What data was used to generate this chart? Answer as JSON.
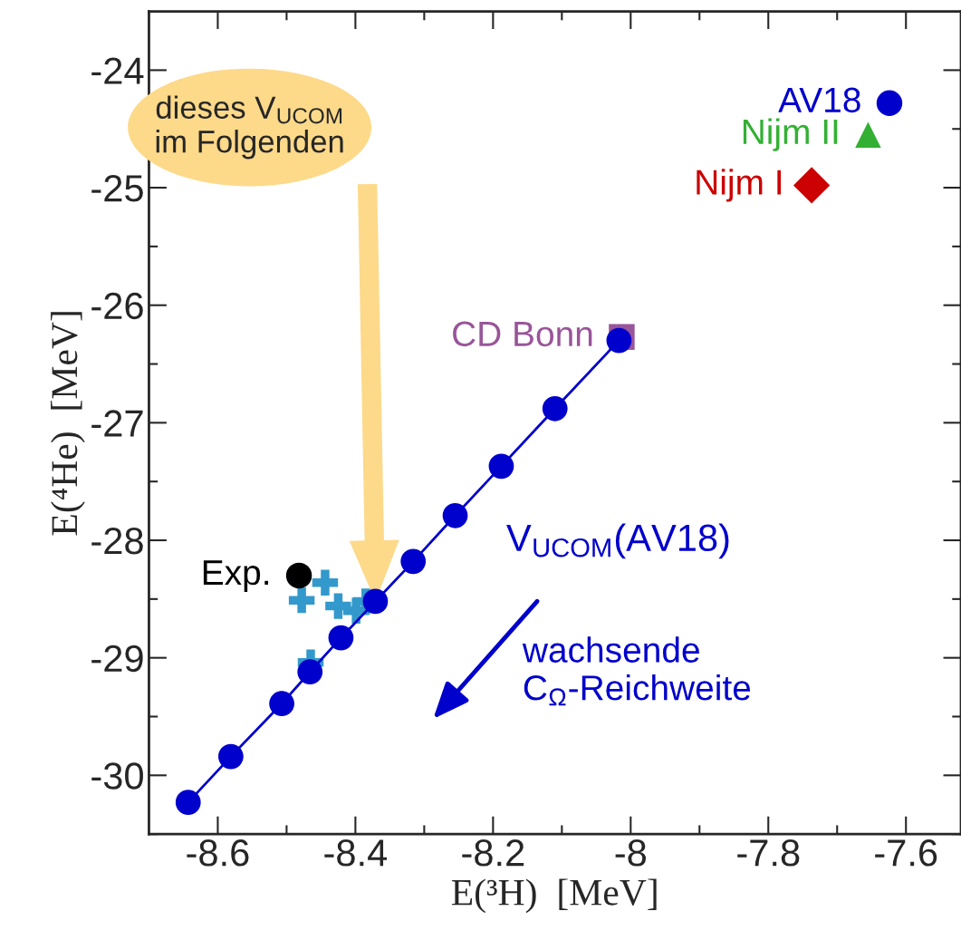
{
  "chart_data": {
    "type": "scatter",
    "xlabel": "E(³H)  [MeV]",
    "ylabel": "E(⁴He)  [MeV]",
    "xlim": [
      -8.7,
      -7.52
    ],
    "ylim": [
      -30.5,
      -23.5
    ],
    "xticks": [
      -8.6,
      -8.4,
      -8.2,
      -8,
      -7.8,
      -7.6
    ],
    "yticks": [
      -30,
      -29,
      -28,
      -27,
      -26,
      -25,
      -24
    ],
    "grid": false,
    "legend": false,
    "series": [
      {
        "name": "V$_{UCOM}$(AV18)",
        "type": "line",
        "marker": "circle",
        "color": "#0000cc",
        "x": [
          -8.643,
          -8.581,
          -8.507,
          -8.466,
          -8.421,
          -8.371,
          -8.316,
          -8.255,
          -8.188,
          -8.11,
          -8.017
        ],
        "values": [
          -30.23,
          -29.84,
          -29.39,
          -29.12,
          -28.83,
          -28.52,
          -28.18,
          -27.79,
          -27.37,
          -26.88,
          -26.3
        ]
      },
      {
        "type": "scatter",
        "marker": "cross",
        "color": "#3399cc",
        "x": [
          -8.444,
          -8.478,
          -8.425,
          -8.399,
          -8.385,
          -8.465
        ],
        "values": [
          -28.36,
          -28.51,
          -28.56,
          -28.6,
          -28.52,
          -29.04
        ]
      },
      {
        "name": "Exp.",
        "type": "scatter",
        "marker": "circle",
        "color": "#000000",
        "x": [
          -8.482
        ],
        "values": [
          -28.3
        ]
      },
      {
        "name": "CD Bonn",
        "type": "scatter",
        "marker": "square",
        "color": "#995599",
        "x": [
          -8.013
        ],
        "values": [
          -26.27
        ]
      },
      {
        "name": "AV18",
        "type": "scatter",
        "marker": "circle",
        "color": "#0000cc",
        "x": [
          -7.624
        ],
        "values": [
          -24.28
        ]
      },
      {
        "name": "Nijm II",
        "type": "scatter",
        "marker": "triangle",
        "color": "#33b033",
        "x": [
          -7.655
        ],
        "values": [
          -24.55
        ]
      },
      {
        "name": "Nijm I",
        "type": "scatter",
        "marker": "diamond",
        "color": "#cc0000",
        "x": [
          -7.737
        ],
        "values": [
          -24.98
        ]
      }
    ],
    "annotations": [
      "dieses V$_{UCOM}$\nim Folgenden",
      "wachsende\nC$_{Ω}$-Reichweite"
    ]
  }
}
